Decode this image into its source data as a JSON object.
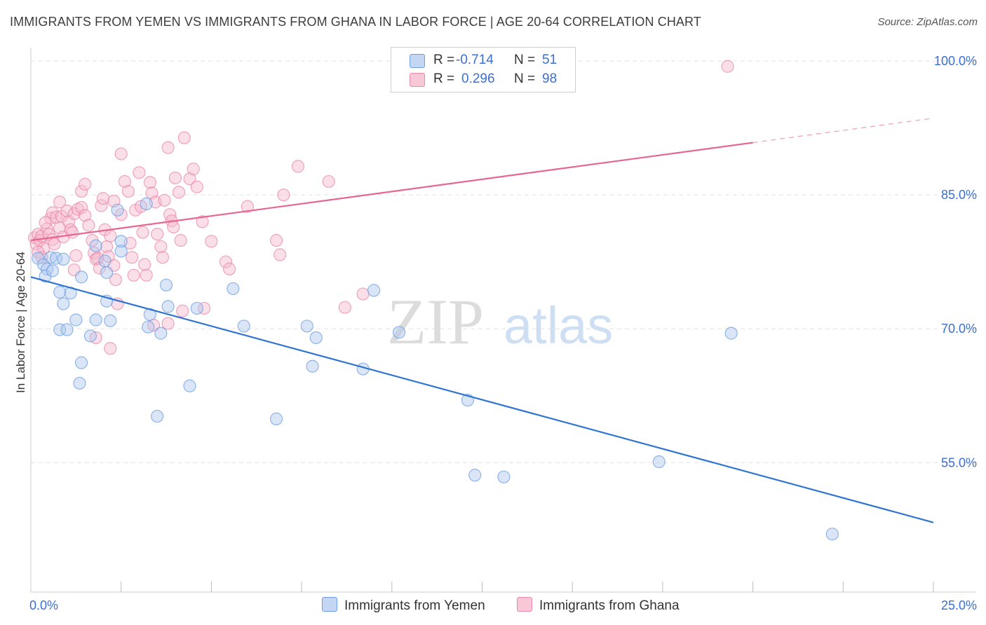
{
  "title": "IMMIGRANTS FROM YEMEN VS IMMIGRANTS FROM GHANA IN LABOR FORCE | AGE 20-64 CORRELATION CHART",
  "source": "Source: ZipAtlas.com",
  "watermark": {
    "zip": "ZIP",
    "atlas": "atlas"
  },
  "legend": {
    "rows": [
      {
        "r_label": "R =",
        "r_value": "-0.714",
        "n_label": "N =",
        "n_value": "51"
      },
      {
        "r_label": "R =",
        "r_value": "0.296",
        "n_label": "N =",
        "n_value": "98"
      }
    ]
  },
  "bottom_legend": {
    "yemen": "Immigrants from Yemen",
    "ghana": "Immigrants from Ghana"
  },
  "colors": {
    "yemen_fill": "#adc8f0",
    "yemen_stroke": "#6f9fe0",
    "yemen_line": "#2f74d0",
    "ghana_fill": "#f6b8cb",
    "ghana_stroke": "#ea8aaa",
    "ghana_line": "#e5668f",
    "tick_label": "#3b6fd1",
    "grid": "#e3e3e3"
  },
  "chart_data": {
    "type": "scatter",
    "title": "IMMIGRANTS FROM YEMEN VS IMMIGRANTS FROM GHANA IN LABOR FORCE | AGE 20-64 CORRELATION CHART",
    "xlabel": "",
    "ylabel": "In Labor Force | Age 20-64",
    "xlim": [
      0,
      25
    ],
    "ylim": [
      40.5,
      101.5
    ],
    "x_tick_labels": [
      {
        "x": 0,
        "label": "0.0%"
      },
      {
        "x": 25,
        "label": "25.0%"
      }
    ],
    "x_minor_ticks": [
      2.5,
      5,
      7.5,
      10,
      12.5,
      15,
      17.5,
      20,
      22.5,
      25
    ],
    "y_ticks": [
      {
        "y": 100,
        "label": "100.0%"
      },
      {
        "y": 85,
        "label": "85.0%"
      },
      {
        "y": 70,
        "label": "70.0%"
      },
      {
        "y": 55,
        "label": "55.0%"
      }
    ],
    "series": [
      {
        "name": "Immigrants from Yemen",
        "r": -0.714,
        "n": 51,
        "trend": {
          "x0": 0,
          "y0": 75.8,
          "x1": 25,
          "y1": 48.3,
          "solid_to": 25
        },
        "points": [
          [
            0.2,
            77.9
          ],
          [
            0.35,
            77.2
          ],
          [
            0.45,
            76.7
          ],
          [
            0.4,
            75.9
          ],
          [
            0.55,
            78.0
          ],
          [
            0.7,
            77.9
          ],
          [
            0.6,
            76.5
          ],
          [
            0.9,
            77.8
          ],
          [
            0.8,
            74.1
          ],
          [
            0.9,
            72.8
          ],
          [
            0.8,
            69.9
          ],
          [
            1.0,
            69.9
          ],
          [
            1.1,
            74.0
          ],
          [
            1.25,
            71.0
          ],
          [
            1.4,
            66.2
          ],
          [
            1.4,
            75.8
          ],
          [
            1.65,
            69.2
          ],
          [
            1.8,
            71.0
          ],
          [
            1.8,
            79.3
          ],
          [
            2.1,
            73.1
          ],
          [
            2.2,
            70.9
          ],
          [
            2.1,
            76.3
          ],
          [
            2.4,
            83.3
          ],
          [
            1.35,
            63.9
          ],
          [
            2.5,
            79.8
          ],
          [
            2.5,
            78.7
          ],
          [
            3.2,
            84.0
          ],
          [
            3.25,
            70.2
          ],
          [
            3.3,
            71.6
          ],
          [
            3.5,
            60.2
          ],
          [
            3.6,
            69.5
          ],
          [
            3.75,
            74.9
          ],
          [
            3.8,
            72.5
          ],
          [
            4.4,
            63.6
          ],
          [
            5.6,
            74.5
          ],
          [
            5.9,
            70.3
          ],
          [
            6.8,
            59.9
          ],
          [
            7.65,
            70.3
          ],
          [
            7.8,
            65.8
          ],
          [
            7.9,
            69.0
          ],
          [
            9.2,
            65.5
          ],
          [
            9.5,
            74.3
          ],
          [
            10.2,
            69.6
          ],
          [
            12.1,
            62.0
          ],
          [
            12.3,
            53.6
          ],
          [
            13.1,
            53.4
          ],
          [
            17.4,
            55.1
          ],
          [
            19.4,
            69.5
          ],
          [
            22.2,
            47.0
          ],
          [
            2.05,
            77.6
          ],
          [
            4.6,
            72.3
          ]
        ]
      },
      {
        "name": "Immigrants from Ghana",
        "r": 0.296,
        "n": 98,
        "trend": {
          "x0": 0,
          "y0": 79.9,
          "x1": 25,
          "y1": 93.6,
          "solid_to": 20
        },
        "points": [
          [
            0.1,
            80.2
          ],
          [
            0.15,
            79.5
          ],
          [
            0.2,
            80.6
          ],
          [
            0.25,
            79.9
          ],
          [
            0.3,
            80.4
          ],
          [
            0.35,
            79.0
          ],
          [
            0.2,
            78.6
          ],
          [
            0.3,
            78.0
          ],
          [
            0.45,
            81.2
          ],
          [
            0.5,
            80.6
          ],
          [
            0.55,
            82.4
          ],
          [
            0.6,
            83.0
          ],
          [
            0.6,
            80.0
          ],
          [
            0.65,
            79.5
          ],
          [
            0.7,
            82.5
          ],
          [
            0.8,
            81.3
          ],
          [
            0.85,
            82.6
          ],
          [
            0.9,
            80.3
          ],
          [
            1.0,
            83.2
          ],
          [
            1.05,
            82.0
          ],
          [
            1.1,
            81.1
          ],
          [
            1.15,
            80.8
          ],
          [
            1.2,
            82.9
          ],
          [
            1.25,
            78.2
          ],
          [
            1.3,
            83.4
          ],
          [
            1.4,
            85.4
          ],
          [
            1.4,
            83.6
          ],
          [
            1.5,
            82.7
          ],
          [
            1.6,
            81.6
          ],
          [
            1.7,
            79.9
          ],
          [
            1.75,
            78.5
          ],
          [
            1.8,
            77.8
          ],
          [
            1.85,
            77.9
          ],
          [
            1.9,
            76.8
          ],
          [
            1.95,
            83.8
          ],
          [
            2.0,
            84.6
          ],
          [
            2.05,
            81.1
          ],
          [
            2.1,
            79.2
          ],
          [
            2.15,
            78.1
          ],
          [
            2.2,
            80.4
          ],
          [
            2.3,
            77.1
          ],
          [
            2.35,
            75.5
          ],
          [
            2.4,
            72.8
          ],
          [
            2.5,
            89.6
          ],
          [
            2.5,
            82.8
          ],
          [
            2.6,
            86.5
          ],
          [
            2.7,
            85.4
          ],
          [
            2.75,
            79.6
          ],
          [
            2.8,
            78.0
          ],
          [
            2.85,
            76.0
          ],
          [
            2.9,
            83.3
          ],
          [
            3.0,
            87.5
          ],
          [
            3.05,
            83.7
          ],
          [
            3.1,
            80.8
          ],
          [
            3.15,
            77.2
          ],
          [
            3.2,
            76.0
          ],
          [
            3.3,
            86.4
          ],
          [
            3.35,
            85.2
          ],
          [
            3.45,
            84.2
          ],
          [
            3.5,
            80.6
          ],
          [
            3.6,
            79.2
          ],
          [
            3.65,
            78.0
          ],
          [
            3.7,
            84.4
          ],
          [
            3.8,
            70.6
          ],
          [
            3.8,
            90.3
          ],
          [
            3.85,
            82.8
          ],
          [
            3.9,
            82.1
          ],
          [
            3.95,
            81.4
          ],
          [
            4.0,
            86.9
          ],
          [
            4.1,
            85.3
          ],
          [
            4.15,
            79.9
          ],
          [
            4.25,
            91.4
          ],
          [
            4.4,
            86.8
          ],
          [
            4.5,
            87.9
          ],
          [
            4.6,
            85.9
          ],
          [
            4.75,
            82.0
          ],
          [
            4.8,
            72.3
          ],
          [
            5.0,
            79.8
          ],
          [
            5.4,
            77.5
          ],
          [
            6.0,
            83.7
          ],
          [
            6.8,
            79.9
          ],
          [
            6.9,
            78.3
          ],
          [
            7.0,
            85.0
          ],
          [
            7.4,
            88.2
          ],
          [
            8.25,
            86.5
          ],
          [
            8.7,
            72.4
          ],
          [
            9.2,
            73.9
          ],
          [
            19.3,
            99.4
          ],
          [
            0.8,
            84.2
          ],
          [
            1.5,
            86.2
          ],
          [
            2.3,
            84.3
          ],
          [
            0.4,
            81.9
          ],
          [
            1.2,
            76.6
          ],
          [
            3.4,
            70.4
          ],
          [
            4.2,
            72.0
          ],
          [
            2.2,
            67.8
          ],
          [
            1.8,
            69.0
          ],
          [
            5.5,
            76.7
          ]
        ]
      }
    ]
  }
}
